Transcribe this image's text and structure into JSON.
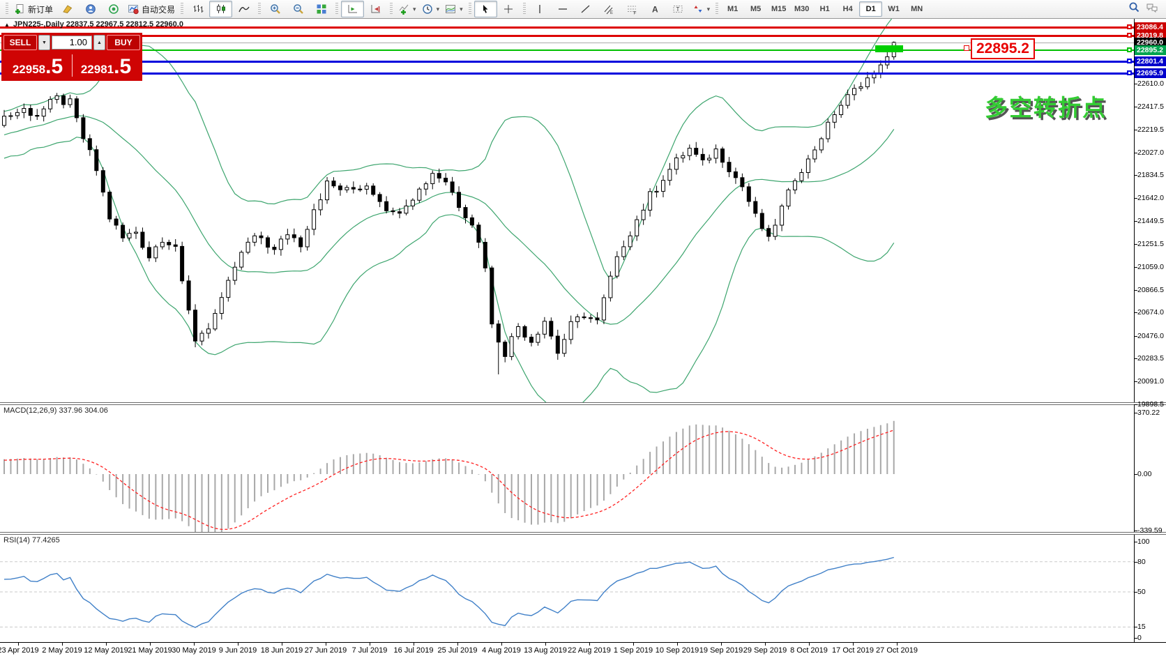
{
  "toolbar": {
    "new_order_label": "新订单",
    "autotrade_label": "自动交易",
    "timeframes": [
      "M1",
      "M5",
      "M15",
      "M30",
      "H1",
      "H4",
      "D1",
      "W1",
      "MN"
    ],
    "active_timeframe": "D1"
  },
  "chart": {
    "title": "JPN225-,Daily 22837.5 22967.5 22812.5 22960.0",
    "collapse_arrow": "▲",
    "annotation_text": "多空转折点",
    "annotation_color": "#33cc33",
    "price_label_text": "22895.2"
  },
  "trade_panel": {
    "sell_label": "SELL",
    "buy_label": "BUY",
    "volume": "1.00",
    "spin_down": "▼",
    "spin_up": "▲",
    "sell_price_main": "22958",
    "sell_price_frac": ".5",
    "buy_price_main": "22981",
    "buy_price_frac": ".5"
  },
  "macd_panel": {
    "name": "MACD(12,26,9)",
    "value_main": "337.96",
    "value_signal": "304.06"
  },
  "rsi_panel": {
    "name": "RSI(14)",
    "value": "77.4265"
  },
  "chart_data": {
    "type": "candlestick",
    "symbol": "JPN225-",
    "timeframe": "Daily",
    "last_candle": {
      "open": 22837.5,
      "high": 22967.5,
      "low": 22812.5,
      "close": 22960.0
    },
    "price_ticks": [
      "22610.0",
      "22417.5",
      "22219.5",
      "22027.0",
      "21834.5",
      "21642.0",
      "21449.5",
      "21251.5",
      "21059.0",
      "20866.5",
      "20674.0",
      "20476.0",
      "20283.5",
      "20091.0",
      "19898.5"
    ],
    "horizontal_lines": [
      {
        "label": "23086.4",
        "price": 23086.4,
        "color": "#dd0000",
        "bg": "#cc0000",
        "thickness": 3
      },
      {
        "label": "23019.8",
        "price": 23019.8,
        "color": "#dd0000",
        "bg": "#cc0000",
        "thickness": 3
      },
      {
        "label": "22960.0",
        "price": 22960.0,
        "color": "#ababab",
        "bg": "#000000",
        "thickness": 1
      },
      {
        "label": "22895.2",
        "price": 22895.2,
        "color": "#00c000",
        "bg": "#00a550",
        "thickness": 2
      },
      {
        "label": "22801.4",
        "price": 22801.4,
        "color": "#0000dd",
        "bg": "#0000cc",
        "thickness": 3
      },
      {
        "label": "22695.9",
        "price": 22695.9,
        "color": "#0000dd",
        "bg": "#0000cc",
        "thickness": 3
      }
    ],
    "date_ticks": [
      "23 Apr 2019",
      "2 May 2019",
      "12 May 2019",
      "21 May 2019",
      "30 May 2019",
      "9 Jun 2019",
      "18 Jun 2019",
      "27 Jun 2019",
      "7 Jul 2019",
      "16 Jul 2019",
      "25 Jul 2019",
      "4 Aug 2019",
      "13 Aug 2019",
      "22 Aug 2019",
      "1 Sep 2019",
      "10 Sep 2019",
      "19 Sep 2019",
      "29 Sep 2019",
      "8 Oct 2019",
      "17 Oct 2019",
      "27 Oct 2019"
    ],
    "close_waypoints": [
      [
        0,
        22330
      ],
      [
        3,
        22390
      ],
      [
        5,
        22350
      ],
      [
        8,
        22480
      ],
      [
        10,
        22440
      ],
      [
        12,
        22150
      ],
      [
        14,
        21880
      ],
      [
        16,
        21480
      ],
      [
        18,
        21300
      ],
      [
        20,
        21360
      ],
      [
        22,
        21150
      ],
      [
        24,
        21310
      ],
      [
        26,
        21240
      ],
      [
        27,
        20900
      ],
      [
        29,
        20450
      ],
      [
        31,
        20560
      ],
      [
        33,
        20760
      ],
      [
        35,
        21060
      ],
      [
        37,
        21260
      ],
      [
        39,
        21310
      ],
      [
        41,
        21190
      ],
      [
        43,
        21350
      ],
      [
        45,
        21260
      ],
      [
        47,
        21560
      ],
      [
        49,
        21760
      ],
      [
        52,
        21700
      ],
      [
        55,
        21760
      ],
      [
        57,
        21640
      ],
      [
        59,
        21500
      ],
      [
        61,
        21610
      ],
      [
        63,
        21710
      ],
      [
        65,
        21860
      ],
      [
        67,
        21790
      ],
      [
        69,
        21590
      ],
      [
        71,
        21440
      ],
      [
        73,
        21080
      ],
      [
        74,
        20560
      ],
      [
        76,
        20340
      ],
      [
        78,
        20560
      ],
      [
        80,
        20440
      ],
      [
        82,
        20610
      ],
      [
        84,
        20340
      ],
      [
        86,
        20560
      ],
      [
        88,
        20660
      ],
      [
        90,
        20590
      ],
      [
        92,
        20960
      ],
      [
        94,
        21260
      ],
      [
        96,
        21460
      ],
      [
        98,
        21660
      ],
      [
        100,
        21810
      ],
      [
        102,
        21960
      ],
      [
        104,
        22060
      ],
      [
        106,
        21940
      ],
      [
        108,
        22050
      ],
      [
        110,
        21890
      ],
      [
        112,
        21740
      ],
      [
        114,
        21490
      ],
      [
        116,
        21290
      ],
      [
        118,
        21560
      ],
      [
        120,
        21810
      ],
      [
        122,
        21960
      ],
      [
        124,
        22160
      ],
      [
        126,
        22360
      ],
      [
        128,
        22500
      ],
      [
        130,
        22610
      ],
      [
        132,
        22700
      ],
      [
        134,
        22837.5
      ],
      [
        135,
        22960
      ]
    ],
    "spikes": [
      {
        "i": 75,
        "low": 20150
      }
    ],
    "indicators": [
      {
        "name": "Bollinger Bands",
        "period": 20,
        "deviation": 2,
        "color": "#3da56e"
      },
      {
        "name": "MACD",
        "params": [
          12,
          26,
          9
        ],
        "last_main": 337.96,
        "last_signal": 304.06,
        "axis_ticks": [
          "370.22",
          "0.00",
          "-339.59"
        ],
        "hist_color": "#a8a8a8",
        "signal_color": "#ff2020"
      },
      {
        "name": "RSI",
        "period": 14,
        "last_value": 77.4265,
        "axis_ticks": [
          100,
          80,
          50,
          15,
          0
        ],
        "levels": [
          80,
          50,
          15
        ],
        "color": "#4080c8"
      }
    ]
  }
}
